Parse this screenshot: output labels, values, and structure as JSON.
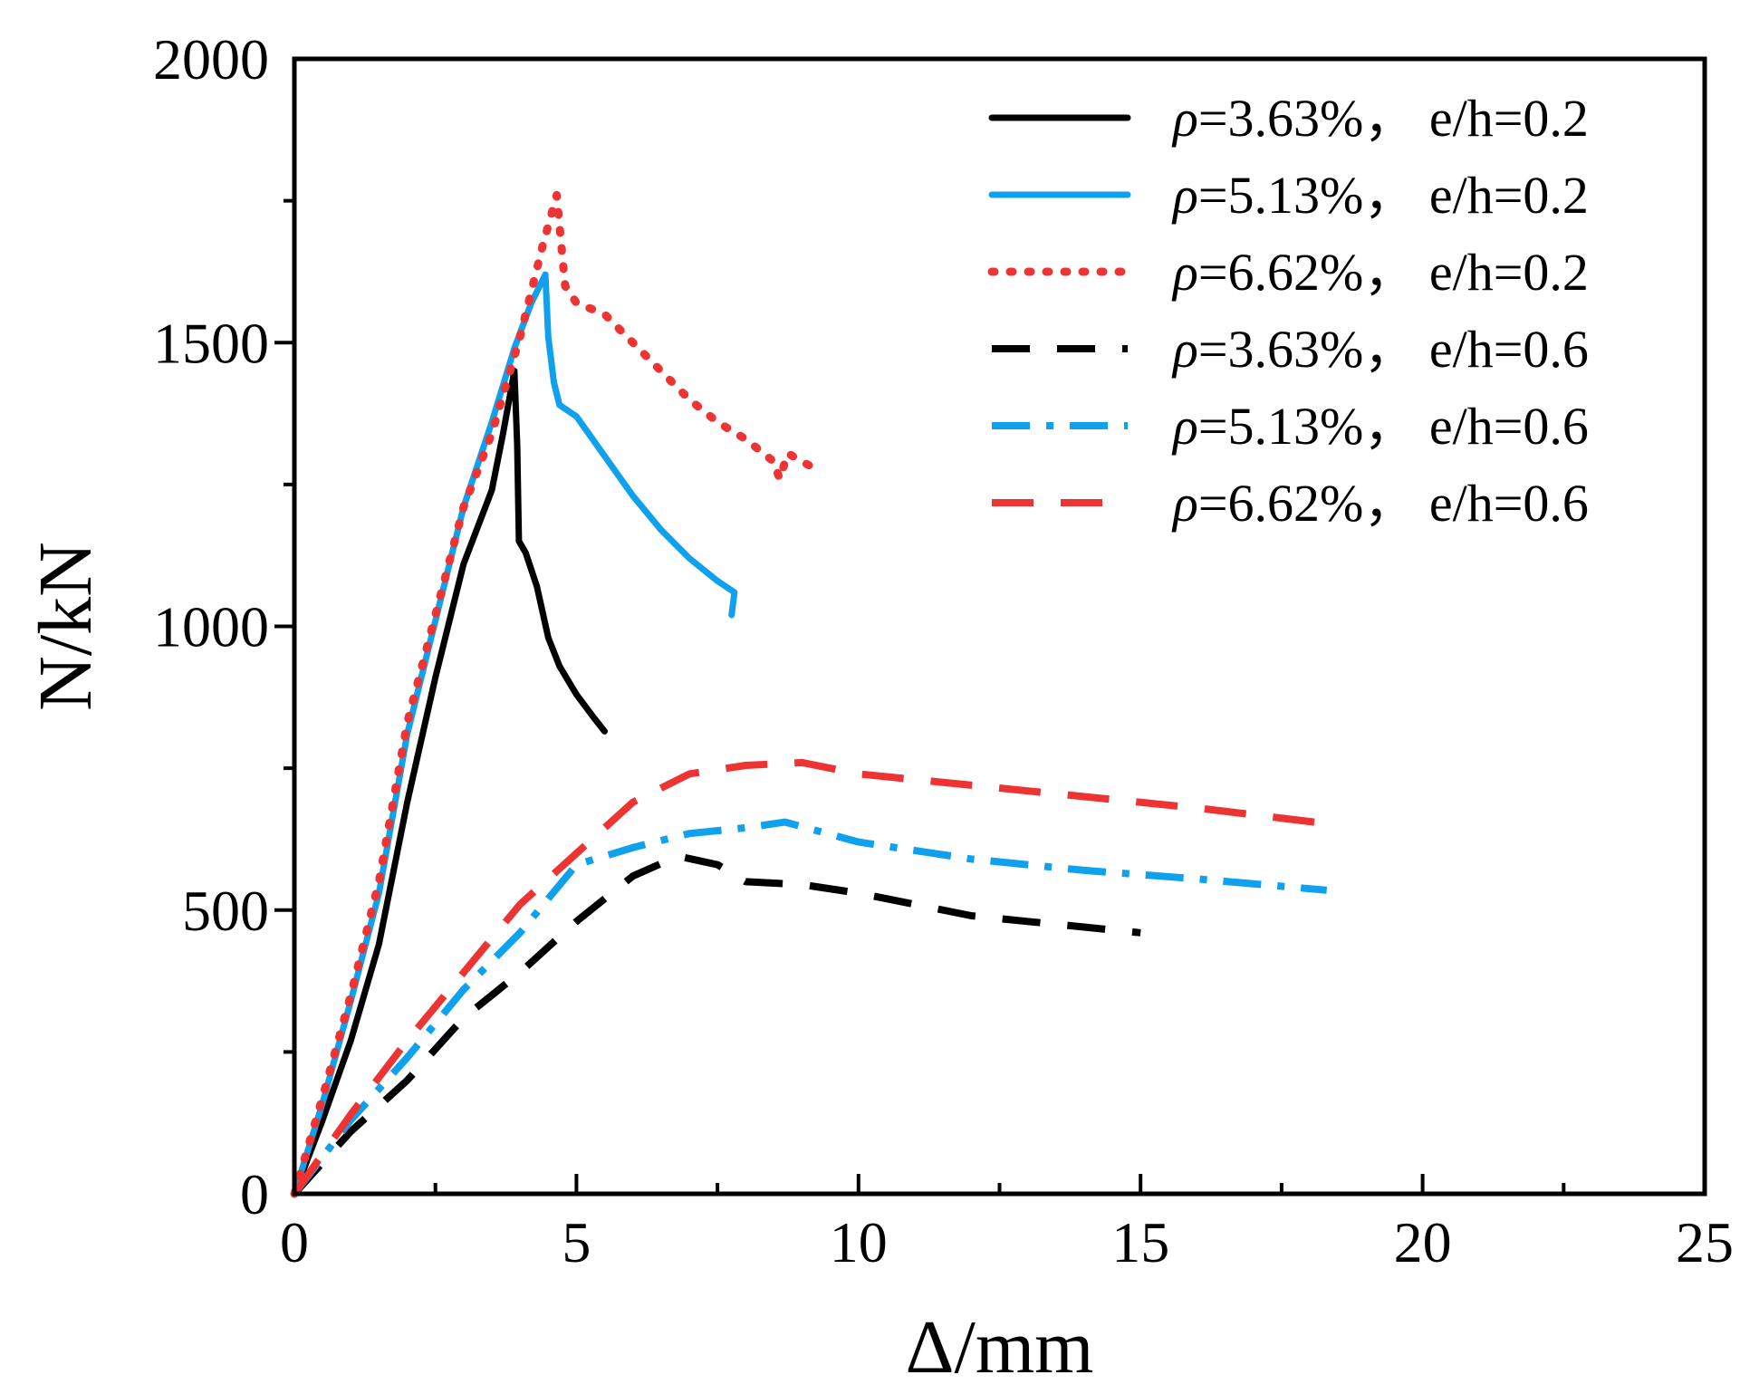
{
  "chart_data": {
    "type": "line",
    "title": "",
    "xlabel": "Δ/mm",
    "ylabel": "N/kN",
    "xlim": [
      0,
      25
    ],
    "ylim": [
      0,
      2000
    ],
    "xticks": [
      0,
      5,
      10,
      15,
      20,
      25
    ],
    "xtick_labels": [
      "0",
      "5",
      "10",
      "15",
      "20",
      "25"
    ],
    "yticks": [
      0,
      500,
      1000,
      1500,
      2000
    ],
    "ytick_labels": [
      "0",
      "500",
      "1000",
      "1500",
      "2000"
    ],
    "grid": false,
    "legend_position": "top-right",
    "series": [
      {
        "name": "ρ=3.63%， e/h=0.2",
        "name_symbol": "ρ",
        "name_rest": "=3.63%， e/h=0.2",
        "color": "#000000",
        "style": "solid",
        "points": [
          [
            0,
            0
          ],
          [
            0.5,
            130
          ],
          [
            1.0,
            270
          ],
          [
            1.5,
            440
          ],
          [
            2.0,
            690
          ],
          [
            2.5,
            910
          ],
          [
            3.0,
            1110
          ],
          [
            3.5,
            1240
          ],
          [
            3.7,
            1340
          ],
          [
            3.9,
            1450
          ],
          [
            3.95,
            1320
          ],
          [
            3.98,
            1150
          ],
          [
            4.1,
            1130
          ],
          [
            4.3,
            1070
          ],
          [
            4.5,
            980
          ],
          [
            4.7,
            930
          ],
          [
            5.0,
            880
          ],
          [
            5.3,
            840
          ],
          [
            5.5,
            815
          ]
        ]
      },
      {
        "name": "ρ=5.13%， e/h=0.2",
        "name_symbol": "ρ",
        "name_rest": "=5.13%， e/h=0.2",
        "color": "#0FA0EE",
        "style": "solid",
        "points": [
          [
            0,
            0
          ],
          [
            0.5,
            160
          ],
          [
            1.0,
            340
          ],
          [
            1.5,
            530
          ],
          [
            2.0,
            810
          ],
          [
            2.5,
            1010
          ],
          [
            3.0,
            1210
          ],
          [
            3.5,
            1360
          ],
          [
            3.9,
            1490
          ],
          [
            4.2,
            1570
          ],
          [
            4.45,
            1620
          ],
          [
            4.5,
            1510
          ],
          [
            4.6,
            1430
          ],
          [
            4.7,
            1390
          ],
          [
            5.0,
            1370
          ],
          [
            5.5,
            1300
          ],
          [
            6.0,
            1230
          ],
          [
            6.5,
            1170
          ],
          [
            7.0,
            1120
          ],
          [
            7.5,
            1080
          ],
          [
            7.8,
            1060
          ],
          [
            7.75,
            1020
          ]
        ]
      },
      {
        "name": "ρ=6.62%， e/h=0.2",
        "name_symbol": "ρ",
        "name_rest": "=6.62%， e/h=0.2",
        "color": "#EE3333",
        "style": "dotted",
        "points": [
          [
            0,
            0
          ],
          [
            0.5,
            170
          ],
          [
            1.0,
            350
          ],
          [
            1.5,
            550
          ],
          [
            2.0,
            830
          ],
          [
            2.5,
            1020
          ],
          [
            3.0,
            1210
          ],
          [
            3.5,
            1340
          ],
          [
            4.0,
            1510
          ],
          [
            4.4,
            1670
          ],
          [
            4.65,
            1760
          ],
          [
            4.8,
            1600
          ],
          [
            5.0,
            1570
          ],
          [
            5.5,
            1550
          ],
          [
            6.0,
            1500
          ],
          [
            6.5,
            1450
          ],
          [
            7.0,
            1400
          ],
          [
            7.5,
            1360
          ],
          [
            8.0,
            1330
          ],
          [
            8.5,
            1290
          ],
          [
            8.6,
            1260
          ],
          [
            8.75,
            1305
          ],
          [
            9.0,
            1290
          ],
          [
            9.3,
            1275
          ]
        ]
      },
      {
        "name": "ρ=3.63%， e/h=0.6",
        "name_symbol": "ρ",
        "name_rest": "=3.63%， e/h=0.6",
        "color": "#000000",
        "style": "dashed",
        "points": [
          [
            0,
            0
          ],
          [
            1,
            110
          ],
          [
            2,
            200
          ],
          [
            3,
            310
          ],
          [
            4,
            390
          ],
          [
            5,
            480
          ],
          [
            6,
            560
          ],
          [
            6.8,
            595
          ],
          [
            7.5,
            580
          ],
          [
            8,
            550
          ],
          [
            9,
            545
          ],
          [
            10,
            530
          ],
          [
            11,
            510
          ],
          [
            12,
            490
          ],
          [
            13,
            480
          ],
          [
            14,
            470
          ],
          [
            15,
            460
          ]
        ]
      },
      {
        "name": "ρ=5.13%， e/h=0.6",
        "name_symbol": "ρ",
        "name_rest": "=5.13%， e/h=0.6",
        "color": "#0FA0EE",
        "style": "dashdot",
        "points": [
          [
            0,
            0
          ],
          [
            1,
            130
          ],
          [
            2,
            240
          ],
          [
            3,
            360
          ],
          [
            4,
            460
          ],
          [
            5,
            580
          ],
          [
            6,
            610
          ],
          [
            7,
            635
          ],
          [
            8,
            645
          ],
          [
            8.7,
            655
          ],
          [
            10,
            620
          ],
          [
            12,
            590
          ],
          [
            14,
            570
          ],
          [
            16,
            555
          ],
          [
            18.3,
            535
          ]
        ]
      },
      {
        "name": "ρ=6.62%， e/h=0.6",
        "name_symbol": "ρ",
        "name_rest": "=6.62%， e/h=0.6",
        "color": "#EE3333",
        "style": "longdash",
        "points": [
          [
            0,
            0
          ],
          [
            1,
            140
          ],
          [
            2,
            270
          ],
          [
            3,
            390
          ],
          [
            4,
            510
          ],
          [
            5,
            600
          ],
          [
            6,
            690
          ],
          [
            7,
            740
          ],
          [
            8,
            755
          ],
          [
            9,
            760
          ],
          [
            10,
            740
          ],
          [
            12,
            720
          ],
          [
            14,
            700
          ],
          [
            16,
            680
          ],
          [
            18.5,
            650
          ]
        ]
      }
    ]
  }
}
